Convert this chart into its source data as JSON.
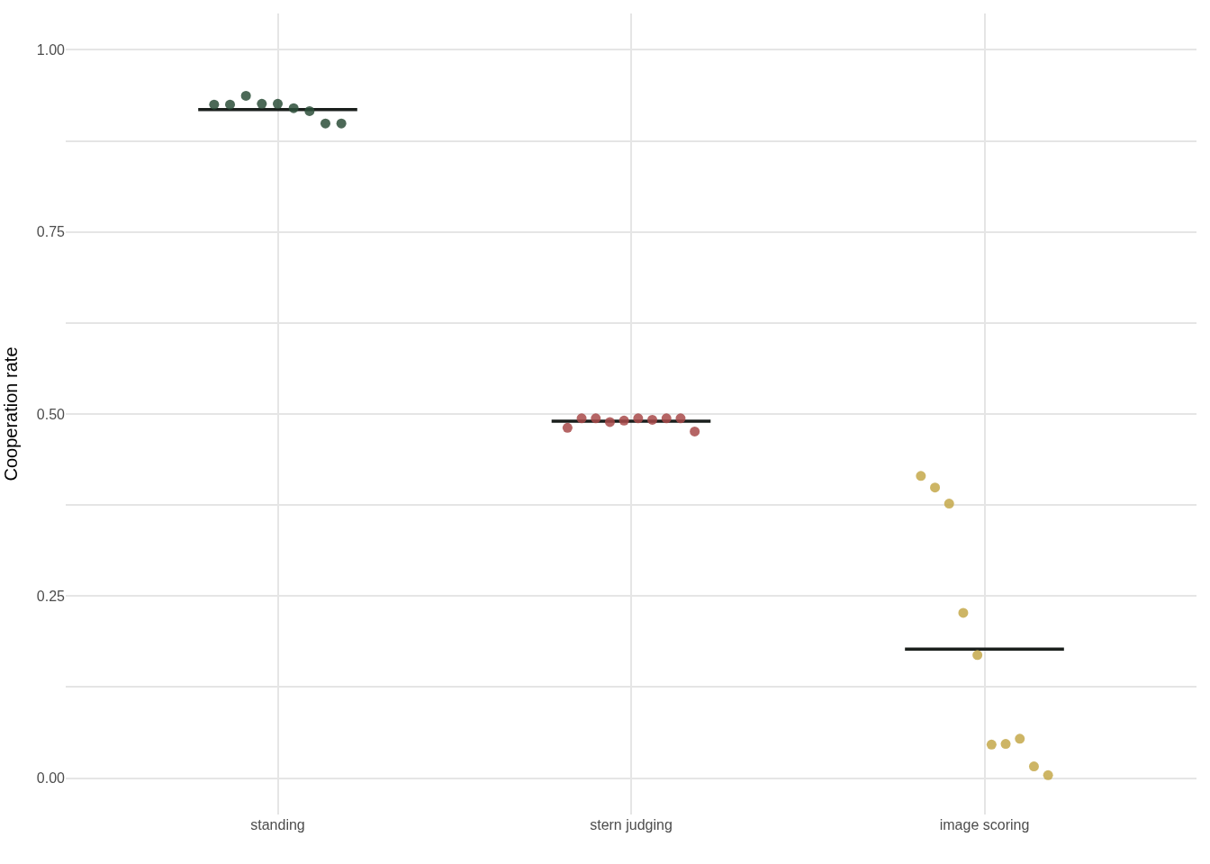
{
  "chart_data": {
    "type": "scatter",
    "ylabel": "Cooperation rate",
    "categories": [
      "standing",
      "stern judging",
      "image scoring"
    ],
    "ylim": [
      -0.05,
      1.05
    ],
    "yticks": [
      {
        "value": 0,
        "label": "0.00"
      },
      {
        "value": 0.125,
        "label": null
      },
      {
        "value": 0.25,
        "label": "0.25"
      },
      {
        "value": 0.375,
        "label": null
      },
      {
        "value": 0.5,
        "label": "0.50"
      },
      {
        "value": 0.625,
        "label": null
      },
      {
        "value": 0.75,
        "label": "0.75"
      },
      {
        "value": 0.875,
        "label": null
      },
      {
        "value": 1,
        "label": "1.00"
      }
    ],
    "grid": true,
    "series": [
      {
        "marker": "circle",
        "color": "#2d4f3a",
        "x": [
          "standing",
          "standing",
          "standing",
          "standing",
          "standing",
          "standing",
          "standing",
          "standing",
          "standing"
        ],
        "values": [
          0.925,
          0.925,
          0.937,
          0.926,
          0.926,
          0.92,
          0.916,
          0.899,
          0.899
        ]
      },
      {
        "marker": "circle",
        "color": "#a84a4a",
        "x": [
          "stern judging",
          "stern judging",
          "stern judging",
          "stern judging",
          "stern judging",
          "stern judging",
          "stern judging",
          "stern judging",
          "stern judging",
          "stern judging"
        ],
        "values": [
          0.481,
          0.494,
          0.494,
          0.489,
          0.491,
          0.494,
          0.492,
          0.494,
          0.494,
          0.476
        ]
      },
      {
        "marker": "circle",
        "color": "#c4a84a",
        "x": [
          "image scoring",
          "image scoring",
          "image scoring",
          "image scoring",
          "image scoring",
          "image scoring",
          "image scoring",
          "image scoring",
          "image scoring",
          "image scoring"
        ],
        "values": [
          0.415,
          0.399,
          0.377,
          0.227,
          0.169,
          0.046,
          0.047,
          0.054,
          0.016,
          0.004
        ]
      },
      {
        "type": "box",
        "color": "#1a1f1c",
        "boxes": [
          {
            "low": 0.918,
            "q1": 0.918,
            "median": 0.918,
            "q3": 0.918,
            "high": 0.918
          },
          {
            "low": 0.49,
            "q1": 0.49,
            "median": 0.49,
            "q3": 0.49,
            "high": 0.49
          },
          {
            "low": 0.177,
            "q1": 0.177,
            "median": 0.177,
            "q3": 0.177,
            "high": 0.177
          }
        ]
      }
    ]
  }
}
